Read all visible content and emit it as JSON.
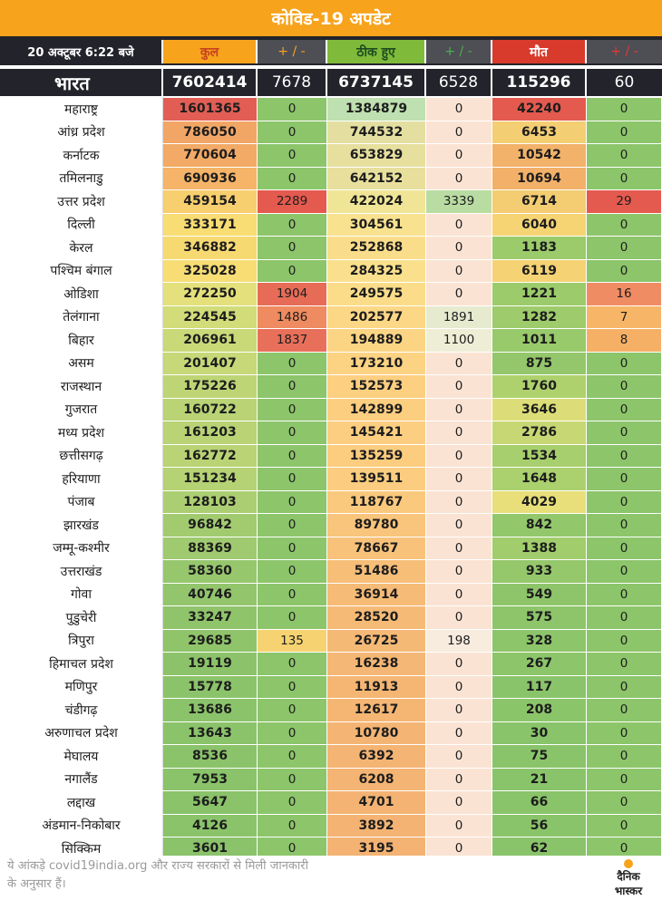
{
  "title": "कोविड-19 अपडेट",
  "header": {
    "date": "20 अक्टूबर 6:22 बजे",
    "total": "कुल",
    "pm1": "+ / -",
    "recovered": "ठीक हुए",
    "pm2": "+ / -",
    "deaths": "मौत",
    "pm3": "+ / -"
  },
  "india": {
    "name": "भारत",
    "total": "7602414",
    "total_change": "7678",
    "recovered": "6737145",
    "recovered_change": "6528",
    "deaths": "115296",
    "deaths_change": "60"
  },
  "rows": [
    {
      "state": "महाराष्ट्र",
      "total": "1601365",
      "tc": "0",
      "rec": "1384879",
      "rc": "0",
      "death": "42240",
      "dc": "0",
      "total_color": "#e25e55",
      "tc_color": "#8cc56a",
      "rec_color": "#bfe0b0",
      "rc_color": "#fbe3d3",
      "death_color": "#e45a4f",
      "dc_color": "#8cc56a"
    },
    {
      "state": "आंध्र प्रदेश",
      "total": "786050",
      "tc": "0",
      "rec": "744532",
      "rc": "0",
      "death": "6453",
      "dc": "0",
      "total_color": "#f2a666",
      "tc_color": "#8cc56a",
      "rec_color": "#e4dfa0",
      "rc_color": "#fbe3d3",
      "death_color": "#f4ce72",
      "dc_color": "#8cc56a"
    },
    {
      "state": "कर्नाटक",
      "total": "770604",
      "tc": "0",
      "rec": "653829",
      "rc": "0",
      "death": "10542",
      "dc": "0",
      "total_color": "#f3aa66",
      "tc_color": "#8cc56a",
      "rec_color": "#e7df9e",
      "rc_color": "#fbe3d3",
      "death_color": "#f2b269",
      "dc_color": "#8cc56a"
    },
    {
      "state": "तमिलनाडु",
      "total": "690936",
      "tc": "0",
      "rec": "642152",
      "rc": "0",
      "death": "10694",
      "dc": "0",
      "total_color": "#f5b468",
      "tc_color": "#8cc56a",
      "rec_color": "#e8df9d",
      "rc_color": "#fbe3d3",
      "death_color": "#f2b068",
      "dc_color": "#8cc56a"
    },
    {
      "state": "उत्तर प्रदेश",
      "total": "459154",
      "tc": "2289",
      "rec": "422024",
      "rc": "3339",
      "death": "6714",
      "dc": "29",
      "total_color": "#f8cf6f",
      "tc_color": "#e45a4f",
      "rec_color": "#f0e596",
      "rc_color": "#b9dca2",
      "death_color": "#f4cd72",
      "dc_color": "#e45a4f"
    },
    {
      "state": "दिल्ली",
      "total": "333171",
      "tc": "0",
      "rec": "304561",
      "rc": "0",
      "death": "6040",
      "dc": "0",
      "total_color": "#f8dc74",
      "tc_color": "#8cc56a",
      "rec_color": "#f8e28f",
      "rc_color": "#fbe3d3",
      "death_color": "#f6d474",
      "dc_color": "#8cc56a"
    },
    {
      "state": "केरल",
      "total": "346882",
      "tc": "0",
      "rec": "252868",
      "rc": "0",
      "death": "1183",
      "dc": "0",
      "total_color": "#f7d972",
      "tc_color": "#8cc56a",
      "rec_color": "#fadd8a",
      "rc_color": "#fbe3d3",
      "death_color": "#9bcb6b",
      "dc_color": "#8cc56a"
    },
    {
      "state": "पश्चिम बंगाल",
      "total": "325028",
      "tc": "0",
      "rec": "284325",
      "rc": "0",
      "death": "6119",
      "dc": "0",
      "total_color": "#f7dd74",
      "tc_color": "#8cc56a",
      "rec_color": "#fae08d",
      "rc_color": "#fbe3d3",
      "death_color": "#f5d273",
      "dc_color": "#8cc56a"
    },
    {
      "state": "ओडिशा",
      "total": "272250",
      "tc": "1904",
      "rec": "249575",
      "rc": "0",
      "death": "1221",
      "dc": "16",
      "total_color": "#e4e07b",
      "tc_color": "#e76c58",
      "rec_color": "#fbdd89",
      "rc_color": "#fbe3d3",
      "death_color": "#9ccb6b",
      "dc_color": "#f08c63"
    },
    {
      "state": "तेलंगाना",
      "total": "224545",
      "tc": "1486",
      "rec": "202577",
      "rc": "1891",
      "death": "1282",
      "dc": "7",
      "total_color": "#d2dc79",
      "tc_color": "#ee8b60",
      "rec_color": "#fcd786",
      "rc_color": "#e6ebd0",
      "death_color": "#9ecb6b",
      "dc_color": "#f7b667"
    },
    {
      "state": "बिहार",
      "total": "206961",
      "tc": "1837",
      "rec": "194889",
      "rc": "1100",
      "death": "1011",
      "dc": "8",
      "total_color": "#c9d978",
      "tc_color": "#e8705a",
      "rec_color": "#fcd584",
      "rc_color": "#eeeed6",
      "death_color": "#98c96b",
      "dc_color": "#f5b066"
    },
    {
      "state": "असम",
      "total": "201407",
      "tc": "0",
      "rec": "173210",
      "rc": "0",
      "death": "875",
      "dc": "0",
      "total_color": "#c6d877",
      "tc_color": "#8cc56a",
      "rec_color": "#fcd283",
      "rc_color": "#fbe3d3",
      "death_color": "#94c76b",
      "dc_color": "#8cc56a"
    },
    {
      "state": "राजस्थान",
      "total": "175226",
      "tc": "0",
      "rec": "152573",
      "rc": "0",
      "death": "1760",
      "dc": "0",
      "total_color": "#bed576",
      "tc_color": "#8cc56a",
      "rec_color": "#fccf81",
      "rc_color": "#fbe3d3",
      "death_color": "#aed16e",
      "dc_color": "#8cc56a"
    },
    {
      "state": "गुजरात",
      "total": "160722",
      "tc": "0",
      "rec": "142899",
      "rc": "0",
      "death": "3646",
      "dc": "0",
      "total_color": "#b9d375",
      "tc_color": "#8cc56a",
      "rec_color": "#fcce80",
      "rc_color": "#fbe3d3",
      "death_color": "#dcdd78",
      "dc_color": "#8cc56a"
    },
    {
      "state": "मध्य प्रदेश",
      "total": "161203",
      "tc": "0",
      "rec": "145421",
      "rc": "0",
      "death": "2786",
      "dc": "0",
      "total_color": "#b9d375",
      "tc_color": "#8cc56a",
      "rec_color": "#fcce81",
      "rc_color": "#fbe3d3",
      "death_color": "#c7d773",
      "dc_color": "#8cc56a"
    },
    {
      "state": "छत्तीसगढ़",
      "total": "162772",
      "tc": "0",
      "rec": "135259",
      "rc": "0",
      "death": "1534",
      "dc": "0",
      "total_color": "#bad375",
      "tc_color": "#8cc56a",
      "rec_color": "#fccc7f",
      "rc_color": "#fbe3d3",
      "death_color": "#a7cf6d",
      "dc_color": "#8cc56a"
    },
    {
      "state": "हरियाणा",
      "total": "151234",
      "tc": "0",
      "rec": "139511",
      "rc": "0",
      "death": "1648",
      "dc": "0",
      "total_color": "#b5d274",
      "tc_color": "#8cc56a",
      "rec_color": "#fccd80",
      "rc_color": "#fbe3d3",
      "death_color": "#abd06e",
      "dc_color": "#8cc56a"
    },
    {
      "state": "पंजाब",
      "total": "128103",
      "tc": "0",
      "rec": "118767",
      "rc": "0",
      "death": "4029",
      "dc": "0",
      "total_color": "#acce72",
      "tc_color": "#8cc56a",
      "rec_color": "#fbc97d",
      "rc_color": "#fbe3d3",
      "death_color": "#e9df7a",
      "dc_color": "#8cc56a"
    },
    {
      "state": "झारखंड",
      "total": "96842",
      "tc": "0",
      "rec": "89780",
      "rc": "0",
      "death": "842",
      "dc": "0",
      "total_color": "#a2cb70",
      "tc_color": "#8cc56a",
      "rec_color": "#f9c47b",
      "rc_color": "#fbe3d3",
      "death_color": "#93c76b",
      "dc_color": "#8cc56a"
    },
    {
      "state": "जम्मू-कश्मीर",
      "total": "88369",
      "tc": "0",
      "rec": "78667",
      "rc": "0",
      "death": "1388",
      "dc": "0",
      "total_color": "#9fca6f",
      "tc_color": "#8cc56a",
      "rec_color": "#f8c27a",
      "rc_color": "#fbe3d3",
      "death_color": "#a2cd6c",
      "dc_color": "#8cc56a"
    },
    {
      "state": "उत्तराखंड",
      "total": "58360",
      "tc": "0",
      "rec": "51486",
      "rc": "0",
      "death": "933",
      "dc": "0",
      "total_color": "#97c76d",
      "tc_color": "#8cc56a",
      "rec_color": "#f7be78",
      "rc_color": "#fbe3d3",
      "death_color": "#95c76b",
      "dc_color": "#8cc56a"
    },
    {
      "state": "गोवा",
      "total": "40746",
      "tc": "0",
      "rec": "36914",
      "rc": "0",
      "death": "549",
      "dc": "0",
      "total_color": "#92c56c",
      "tc_color": "#8cc56a",
      "rec_color": "#f6bb77",
      "rc_color": "#fbe3d3",
      "death_color": "#8ec56a",
      "dc_color": "#8cc56a"
    },
    {
      "state": "पुडुचेरी",
      "total": "33247",
      "tc": "0",
      "rec": "28520",
      "rc": "0",
      "death": "575",
      "dc": "0",
      "total_color": "#90c46b",
      "tc_color": "#8cc56a",
      "rec_color": "#f6ba77",
      "rc_color": "#fbe3d3",
      "death_color": "#8ec56a",
      "dc_color": "#8cc56a"
    },
    {
      "state": "त्रिपुरा",
      "total": "29685",
      "tc": "135",
      "rec": "26725",
      "rc": "198",
      "death": "328",
      "dc": "0",
      "total_color": "#8fc46b",
      "tc_color": "#f6d370",
      "rec_color": "#f5b976",
      "rc_color": "#f8ecdf",
      "death_color": "#8cc56a",
      "dc_color": "#8cc56a"
    },
    {
      "state": "हिमाचल प्रदेश",
      "total": "19119",
      "tc": "0",
      "rec": "16238",
      "rc": "0",
      "death": "267",
      "dc": "0",
      "total_color": "#8cc36a",
      "tc_color": "#8cc56a",
      "rec_color": "#f5b775",
      "rc_color": "#fbe3d3",
      "death_color": "#8cc56a",
      "dc_color": "#8cc56a"
    },
    {
      "state": "मणिपुर",
      "total": "15778",
      "tc": "0",
      "rec": "11913",
      "rc": "0",
      "death": "117",
      "dc": "0",
      "total_color": "#8bc36a",
      "tc_color": "#8cc56a",
      "rec_color": "#f5b674",
      "rc_color": "#fbe3d3",
      "death_color": "#8ac46a",
      "dc_color": "#8cc56a"
    },
    {
      "state": "चंडीगढ़",
      "total": "13686",
      "tc": "0",
      "rec": "12617",
      "rc": "0",
      "death": "208",
      "dc": "0",
      "total_color": "#8bc36a",
      "tc_color": "#8cc56a",
      "rec_color": "#f5b674",
      "rc_color": "#fbe3d3",
      "death_color": "#8bc56a",
      "dc_color": "#8cc56a"
    },
    {
      "state": "अरुणाचल प्रदेश",
      "total": "13643",
      "tc": "0",
      "rec": "10780",
      "rc": "0",
      "death": "30",
      "dc": "0",
      "total_color": "#8bc36a",
      "tc_color": "#8cc56a",
      "rec_color": "#f4b574",
      "rc_color": "#fbe3d3",
      "death_color": "#89c46a",
      "dc_color": "#8cc56a"
    },
    {
      "state": "मेघालय",
      "total": "8536",
      "tc": "0",
      "rec": "6392",
      "rc": "0",
      "death": "75",
      "dc": "0",
      "total_color": "#8ac36a",
      "tc_color": "#8cc56a",
      "rec_color": "#f4b473",
      "rc_color": "#fbe3d3",
      "death_color": "#8ac46a",
      "dc_color": "#8cc56a"
    },
    {
      "state": "नगालैंड",
      "total": "7953",
      "tc": "0",
      "rec": "6208",
      "rc": "0",
      "death": "21",
      "dc": "0",
      "total_color": "#8ac36a",
      "tc_color": "#8cc56a",
      "rec_color": "#f4b473",
      "rc_color": "#fbe3d3",
      "death_color": "#89c46a",
      "dc_color": "#8cc56a"
    },
    {
      "state": "लद्दाख",
      "total": "5647",
      "tc": "0",
      "rec": "4701",
      "rc": "0",
      "death": "66",
      "dc": "0",
      "total_color": "#8ac36a",
      "tc_color": "#8cc56a",
      "rec_color": "#f4b373",
      "rc_color": "#fbe3d3",
      "death_color": "#8ac46a",
      "dc_color": "#8cc56a"
    },
    {
      "state": "अंडमान-निकोबार",
      "total": "4126",
      "tc": "0",
      "rec": "3892",
      "rc": "0",
      "death": "56",
      "dc": "0",
      "total_color": "#8ac36a",
      "tc_color": "#8cc56a",
      "rec_color": "#f4b373",
      "rc_color": "#fbe3d3",
      "death_color": "#8ac46a",
      "dc_color": "#8cc56a"
    },
    {
      "state": "सिक्किम",
      "total": "3601",
      "tc": "0",
      "rec": "3195",
      "rc": "0",
      "death": "62",
      "dc": "0",
      "total_color": "#8ac36a",
      "tc_color": "#8cc56a",
      "rec_color": "#f4b373",
      "rc_color": "#fbe3d3",
      "death_color": "#8ac46a",
      "dc_color": "#8cc56a"
    }
  ],
  "footer": {
    "note": "ये आंकड़े covid19india.org और राज्य सरकारों से मिली जानकारी के अनुसार हैं।",
    "logo_line1": "दैनिक",
    "logo_line2": "भास्कर",
    "logo_dot_color": "#f7a31c"
  }
}
